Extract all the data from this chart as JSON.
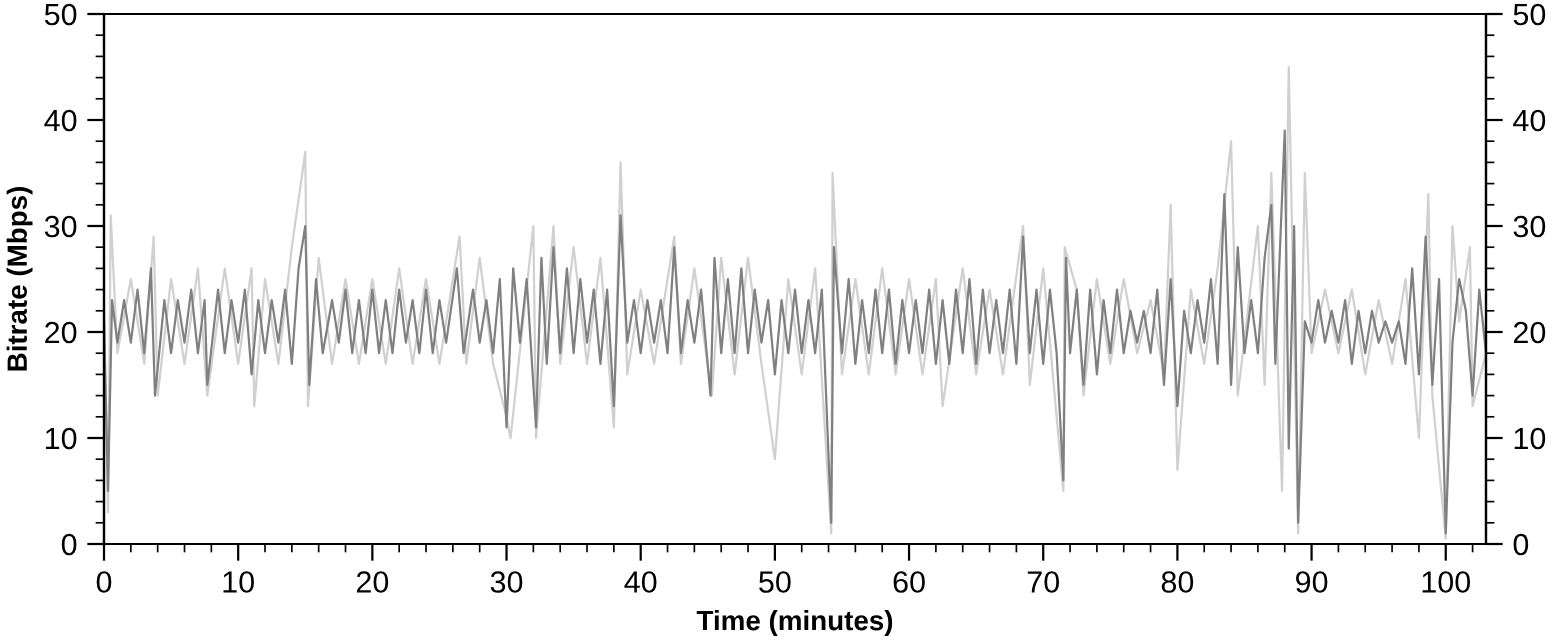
{
  "chart_data": {
    "type": "line",
    "xlabel": "Time (minutes)",
    "ylabel": "Bitrate (Mbps)",
    "xlim": [
      0,
      103
    ],
    "ylim": [
      0,
      50
    ],
    "y2lim": [
      0,
      50
    ],
    "xticks": [
      0,
      {
        "value": 2,
        "label": null
      },
      {
        "value": 4,
        "label": null
      },
      {
        "value": 6,
        "label": null
      },
      {
        "value": 8,
        "label": null
      },
      10,
      {
        "value": 12,
        "label": null
      },
      {
        "value": 14,
        "label": null
      },
      {
        "value": 16,
        "label": null
      },
      {
        "value": 18,
        "label": null
      },
      20,
      {
        "value": 22,
        "label": null
      },
      {
        "value": 24,
        "label": null
      },
      {
        "value": 26,
        "label": null
      },
      {
        "value": 28,
        "label": null
      },
      30,
      {
        "value": 32,
        "label": null
      },
      {
        "value": 34,
        "label": null
      },
      {
        "value": 36,
        "label": null
      },
      {
        "value": 38,
        "label": null
      },
      40,
      {
        "value": 42,
        "label": null
      },
      {
        "value": 44,
        "label": null
      },
      {
        "value": 46,
        "label": null
      },
      {
        "value": 48,
        "label": null
      },
      50,
      {
        "value": 52,
        "label": null
      },
      {
        "value": 54,
        "label": null
      },
      {
        "value": 56,
        "label": null
      },
      {
        "value": 58,
        "label": null
      },
      60,
      {
        "value": 62,
        "label": null
      },
      {
        "value": 64,
        "label": null
      },
      {
        "value": 66,
        "label": null
      },
      {
        "value": 68,
        "label": null
      },
      70,
      {
        "value": 72,
        "label": null
      },
      {
        "value": 74,
        "label": null
      },
      {
        "value": 76,
        "label": null
      },
      {
        "value": 78,
        "label": null
      },
      80,
      {
        "value": 82,
        "label": null
      },
      {
        "value": 84,
        "label": null
      },
      {
        "value": 86,
        "label": null
      },
      {
        "value": 88,
        "label": null
      },
      90,
      {
        "value": 92,
        "label": null
      },
      {
        "value": 94,
        "label": null
      },
      {
        "value": 96,
        "label": null
      },
      {
        "value": 98,
        "label": null
      },
      100,
      {
        "value": 102,
        "label": null
      }
    ],
    "yticks": [
      0,
      {
        "value": 2,
        "label": null
      },
      {
        "value": 4,
        "label": null
      },
      {
        "value": 6,
        "label": null
      },
      {
        "value": 8,
        "label": null
      },
      10,
      {
        "value": 12,
        "label": null
      },
      {
        "value": 14,
        "label": null
      },
      {
        "value": 16,
        "label": null
      },
      {
        "value": 18,
        "label": null
      },
      20,
      {
        "value": 22,
        "label": null
      },
      {
        "value": 24,
        "label": null
      },
      {
        "value": 26,
        "label": null
      },
      {
        "value": 28,
        "label": null
      },
      30,
      {
        "value": 32,
        "label": null
      },
      {
        "value": 34,
        "label": null
      },
      {
        "value": 36,
        "label": null
      },
      {
        "value": 38,
        "label": null
      },
      40,
      {
        "value": 42,
        "label": null
      },
      {
        "value": 44,
        "label": null
      },
      {
        "value": 46,
        "label": null
      },
      {
        "value": 48,
        "label": null
      },
      50
    ],
    "y2ticks": [
      0,
      {
        "value": 2,
        "label": null
      },
      {
        "value": 4,
        "label": null
      },
      {
        "value": 6,
        "label": null
      },
      {
        "value": 8,
        "label": null
      },
      10,
      {
        "value": 12,
        "label": null
      },
      {
        "value": 14,
        "label": null
      },
      {
        "value": 16,
        "label": null
      },
      {
        "value": 18,
        "label": null
      },
      20,
      {
        "value": 22,
        "label": null
      },
      {
        "value": 24,
        "label": null
      },
      {
        "value": 26,
        "label": null
      },
      {
        "value": 28,
        "label": null
      },
      30,
      {
        "value": 32,
        "label": null
      },
      {
        "value": 34,
        "label": null
      },
      {
        "value": 36,
        "label": null
      },
      {
        "value": 38,
        "label": null
      },
      40,
      {
        "value": 42,
        "label": null
      },
      {
        "value": 44,
        "label": null
      },
      {
        "value": 46,
        "label": null
      },
      {
        "value": 48,
        "label": null
      },
      50
    ],
    "grid": false,
    "legend": false,
    "marker": "none",
    "line_style": "solid",
    "series": [
      {
        "color": "#d0d0d0",
        "x": [
          0,
          0.3,
          0.5,
          1,
          2,
          3,
          3.7,
          4,
          5,
          6,
          7,
          7.7,
          9,
          10,
          11,
          11.2,
          12,
          13,
          14,
          15,
          15.2,
          16,
          17,
          18,
          19,
          20,
          21,
          22,
          23,
          24,
          25,
          26.5,
          27,
          28,
          29,
          30,
          30.3,
          32,
          32.2,
          33.5,
          34,
          35,
          36,
          37,
          38,
          38.5,
          39,
          40,
          41,
          42.5,
          43,
          44,
          45.3,
          46,
          47,
          48,
          49,
          50,
          51,
          52,
          53,
          54.2,
          54.3,
          55,
          56,
          57,
          58,
          59,
          60,
          61,
          62,
          62.5,
          64,
          65,
          66,
          67,
          68.5,
          69,
          70,
          71.5,
          71.6,
          72.5,
          73,
          74,
          75,
          76,
          77,
          78,
          79,
          79.5,
          80,
          81,
          82,
          83,
          84,
          84.5,
          86,
          86.5,
          87,
          87.8,
          88.3,
          89,
          89.5,
          90,
          91,
          92,
          93,
          94,
          95,
          96,
          97,
          98,
          98.7,
          99,
          100,
          100.5,
          101,
          101.8,
          102,
          103
        ],
        "values": [
          22,
          3,
          31,
          18,
          25,
          17,
          29,
          14,
          25,
          17,
          26,
          14,
          26,
          17,
          26,
          13,
          25,
          17,
          28,
          37,
          13,
          27,
          17,
          25,
          17,
          25,
          17,
          26,
          17,
          25,
          17,
          29,
          17,
          27,
          17,
          12,
          10,
          30,
          10,
          30,
          17,
          28,
          17,
          27,
          11,
          36,
          16,
          24,
          17,
          29,
          17,
          26,
          14,
          27,
          16,
          27,
          17,
          8,
          25,
          16,
          26,
          1,
          35,
          16,
          25,
          16,
          26,
          16,
          25,
          16,
          25,
          13,
          26,
          16,
          24,
          16,
          30,
          15,
          26,
          5,
          28,
          24,
          14,
          25,
          17,
          25,
          18,
          23,
          16,
          32,
          7,
          24,
          17,
          26,
          38,
          14,
          30,
          15,
          35,
          5,
          45,
          1,
          35,
          18,
          24,
          18,
          24,
          16,
          23,
          17,
          25,
          10,
          33,
          14,
          0.5,
          30,
          21,
          28,
          13,
          18
        ]
      },
      {
        "color": "#808080",
        "x": [
          0,
          0.3,
          0.6,
          1,
          1.5,
          2,
          2.5,
          3,
          3.5,
          3.8,
          4.5,
          5,
          5.5,
          6,
          6.5,
          7,
          7.5,
          7.7,
          8.5,
          9,
          9.5,
          10,
          10.5,
          11,
          11.5,
          12,
          12.5,
          13,
          13.5,
          14,
          14.5,
          15,
          15.3,
          15.8,
          16.3,
          17,
          17.5,
          18,
          18.5,
          19,
          19.5,
          20,
          20.5,
          21,
          21.5,
          22,
          22.5,
          23,
          23.5,
          24,
          24.5,
          25,
          25.5,
          26.3,
          26.8,
          27.5,
          28,
          28.5,
          29,
          29.5,
          30,
          30.5,
          31,
          31.5,
          32.2,
          32.6,
          33,
          33.5,
          34,
          34.5,
          35,
          35.5,
          36,
          36.5,
          37,
          37.5,
          38,
          38.5,
          39,
          39.5,
          40,
          40.5,
          41,
          41.5,
          42,
          42.5,
          43,
          43.5,
          44,
          44.5,
          45.2,
          45.5,
          46,
          46.5,
          47,
          47.5,
          48,
          48.5,
          49,
          49.5,
          50,
          50.5,
          51,
          51.5,
          52,
          52.5,
          53,
          53.5,
          54.2,
          54.4,
          55,
          55.5,
          56,
          56.5,
          57,
          57.5,
          58,
          58.5,
          59,
          59.5,
          60,
          60.5,
          61,
          61.5,
          62,
          62.5,
          63,
          63.5,
          64,
          64.5,
          65,
          65.5,
          66,
          66.5,
          67,
          67.5,
          68,
          68.5,
          69,
          69.5,
          70,
          70.5,
          71,
          71.5,
          71.7,
          72,
          72.5,
          73,
          73.5,
          74,
          74.5,
          75,
          75.5,
          76,
          76.5,
          77,
          77.5,
          78,
          78.5,
          79,
          79.5,
          80,
          80.5,
          81,
          81.5,
          82,
          82.5,
          83,
          83.5,
          84,
          84.5,
          85,
          85.5,
          86,
          86.5,
          87,
          87.3,
          88,
          88.3,
          88.7,
          89,
          89.5,
          90,
          90.5,
          91,
          91.5,
          92,
          92.5,
          93,
          93.5,
          94,
          94.5,
          95,
          95.5,
          96,
          96.5,
          97,
          97.5,
          98,
          98.5,
          99,
          99.5,
          100,
          100.5,
          101,
          101.5,
          102,
          102.5,
          103
        ],
        "values": [
          21,
          5,
          23,
          19,
          23,
          19,
          24,
          18,
          26,
          14,
          23,
          18,
          23,
          19,
          24,
          18,
          23,
          15,
          24,
          18,
          23,
          19,
          24,
          16,
          23,
          18,
          23,
          19,
          24,
          17,
          26,
          30,
          15,
          25,
          18,
          23,
          19,
          24,
          18,
          23,
          18,
          24,
          18,
          23,
          18,
          24,
          19,
          23,
          18,
          24,
          18,
          23,
          19,
          26,
          18,
          24,
          19,
          23,
          18,
          25,
          11,
          26,
          19,
          25,
          11,
          27,
          17,
          28,
          18,
          26,
          18,
          25,
          19,
          24,
          17,
          24,
          13,
          31,
          19,
          23,
          18,
          23,
          19,
          23,
          18,
          28,
          18,
          23,
          19,
          24,
          14,
          27,
          18,
          25,
          18,
          26,
          18,
          24,
          19,
          23,
          16,
          23,
          18,
          24,
          18,
          23,
          18,
          24,
          2,
          28,
          18,
          25,
          17,
          23,
          18,
          24,
          18,
          24,
          17,
          23,
          18,
          23,
          18,
          24,
          17,
          23,
          17,
          24,
          18,
          25,
          17,
          24,
          18,
          23,
          18,
          24,
          17,
          29,
          18,
          24,
          17,
          24,
          18,
          6,
          27,
          18,
          24,
          15,
          24,
          16,
          23,
          18,
          24,
          18,
          22,
          19,
          22,
          18,
          24,
          15,
          25,
          13,
          22,
          18,
          23,
          19,
          25,
          17,
          33,
          15,
          28,
          18,
          23,
          18,
          27,
          32,
          17,
          39,
          9,
          30,
          2,
          21,
          19,
          23,
          19,
          22,
          19,
          23,
          17,
          22,
          18,
          22,
          19,
          21,
          19,
          21,
          17,
          26,
          16,
          29,
          15,
          25,
          1,
          19,
          25,
          22,
          14,
          24,
          18
        ]
      }
    ]
  }
}
